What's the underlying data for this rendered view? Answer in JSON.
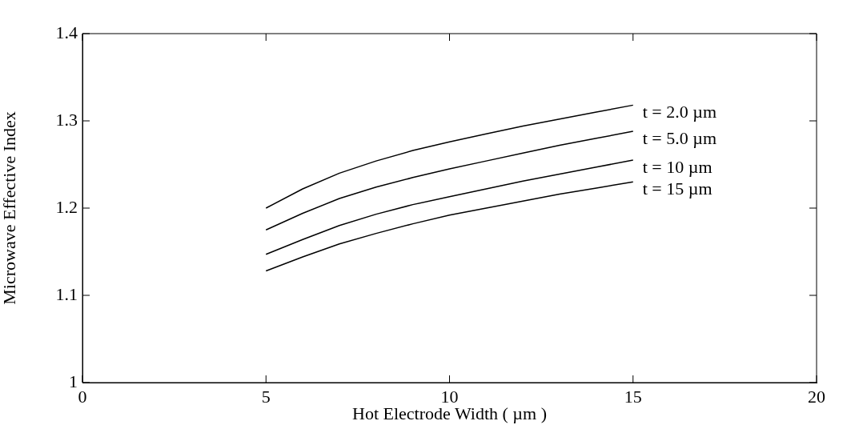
{
  "chart_data": {
    "type": "line",
    "xlabel": "Hot Electrode Width ( µm )",
    "ylabel": "Microwave Effective Index",
    "x": [
      5,
      6,
      7,
      8,
      9,
      10,
      11,
      12,
      13,
      14,
      15
    ],
    "series": [
      {
        "name": "t = 2.0 µm",
        "color": "#000000",
        "values": [
          1.2,
          1.222,
          1.24,
          1.254,
          1.266,
          1.276,
          1.285,
          1.294,
          1.302,
          1.31,
          1.318
        ]
      },
      {
        "name": "t = 5.0 µm",
        "color": "#000000",
        "values": [
          1.175,
          1.194,
          1.211,
          1.224,
          1.235,
          1.245,
          1.254,
          1.263,
          1.272,
          1.28,
          1.288
        ]
      },
      {
        "name": "t = 10 µm",
        "color": "#000000",
        "values": [
          1.147,
          1.164,
          1.18,
          1.193,
          1.204,
          1.213,
          1.222,
          1.231,
          1.239,
          1.247,
          1.255
        ]
      },
      {
        "name": "t = 15 µm",
        "color": "#000000",
        "values": [
          1.128,
          1.144,
          1.159,
          1.171,
          1.182,
          1.192,
          1.2,
          1.208,
          1.216,
          1.223,
          1.23
        ]
      }
    ],
    "xlim": [
      0,
      20
    ],
    "xticks": [
      0,
      5,
      10,
      15,
      20
    ],
    "ylim": [
      1,
      1.4
    ],
    "yticks": [
      1,
      1.1,
      1.2,
      1.3,
      1.4
    ],
    "grid": false,
    "legend": false,
    "marker": "none",
    "line_style": "solid"
  }
}
